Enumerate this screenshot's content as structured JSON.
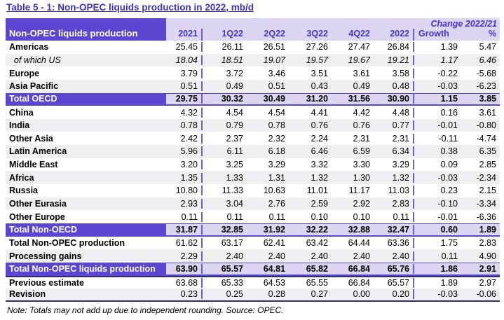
{
  "title": "Table 5 - 1: Non-OPEC liquids production in 2022, mb/d",
  "colors": {
    "accent_purple": "#5a46d0",
    "lavender_band": "#dcd6f2",
    "stripe_gray": "#efeff1",
    "title_blue": "#3a32c6",
    "header_text_purple": "#4336c6",
    "dark_separator": "#2c2c6e"
  },
  "table": {
    "label_header": "Non-OPEC liquids production",
    "change_header": "Change 2022/21",
    "columns": [
      "2021",
      "1Q22",
      "2Q22",
      "3Q22",
      "4Q22",
      "2022",
      "Growth",
      "%"
    ],
    "rows": [
      {
        "label": "Americas",
        "values": [
          "25.45",
          "26.11",
          "26.51",
          "27.26",
          "27.47",
          "26.84",
          "1.39",
          "5.47"
        ]
      },
      {
        "label": "of which US",
        "sub": true,
        "shaded": true,
        "values": [
          "18.04",
          "18.51",
          "19.07",
          "19.57",
          "19.67",
          "19.21",
          "1.17",
          "6.46"
        ]
      },
      {
        "label": "Europe",
        "values": [
          "3.79",
          "3.72",
          "3.46",
          "3.51",
          "3.61",
          "3.58",
          "-0.22",
          "-5.68"
        ]
      },
      {
        "label": "Asia Pacific",
        "shaded": true,
        "values": [
          "0.51",
          "0.49",
          "0.51",
          "0.43",
          "0.49",
          "0.48",
          "-0.03",
          "-6.23"
        ]
      },
      {
        "label": "Total OECD",
        "total": true,
        "values": [
          "29.75",
          "30.32",
          "30.49",
          "31.20",
          "31.56",
          "30.90",
          "1.15",
          "3.85"
        ]
      },
      {
        "label": "China",
        "values": [
          "4.32",
          "4.54",
          "4.54",
          "4.41",
          "4.42",
          "4.48",
          "0.16",
          "3.61"
        ]
      },
      {
        "label": "India",
        "shaded": true,
        "values": [
          "0.78",
          "0.79",
          "0.78",
          "0.76",
          "0.76",
          "0.77",
          "-0.01",
          "-0.80"
        ]
      },
      {
        "label": "Other Asia",
        "values": [
          "2.42",
          "2.37",
          "2.32",
          "2.24",
          "2.31",
          "2.31",
          "-0.11",
          "-4.74"
        ]
      },
      {
        "label": "Latin America",
        "shaded": true,
        "values": [
          "5.96",
          "6.11",
          "6.18",
          "6.46",
          "6.59",
          "6.34",
          "0.38",
          "6.35"
        ]
      },
      {
        "label": "Middle East",
        "values": [
          "3.20",
          "3.25",
          "3.29",
          "3.32",
          "3.30",
          "3.29",
          "0.09",
          "2.85"
        ]
      },
      {
        "label": "Africa",
        "shaded": true,
        "values": [
          "1.35",
          "1.33",
          "1.31",
          "1.32",
          "1.30",
          "1.32",
          "-0.03",
          "-2.34"
        ]
      },
      {
        "label": "Russia",
        "values": [
          "10.80",
          "11.33",
          "10.63",
          "11.01",
          "11.17",
          "11.03",
          "0.23",
          "2.15"
        ]
      },
      {
        "label": "Other Eurasia",
        "shaded": true,
        "values": [
          "2.93",
          "3.04",
          "2.76",
          "2.59",
          "2.92",
          "2.83",
          "-0.10",
          "-3.34"
        ]
      },
      {
        "label": "Other Europe",
        "values": [
          "0.11",
          "0.11",
          "0.11",
          "0.10",
          "0.10",
          "0.11",
          "-0.01",
          "-6.36"
        ]
      },
      {
        "label": "Total Non-OECD",
        "total": true,
        "values": [
          "31.87",
          "32.85",
          "31.92",
          "32.22",
          "32.88",
          "32.47",
          "0.60",
          "1.89"
        ]
      },
      {
        "label": "Total Non-OPEC production",
        "values": [
          "61.62",
          "63.17",
          "62.41",
          "63.42",
          "64.44",
          "63.36",
          "1.75",
          "2.83"
        ]
      },
      {
        "label": "Processing gains",
        "shaded": true,
        "values": [
          "2.29",
          "2.40",
          "2.40",
          "2.40",
          "2.40",
          "2.40",
          "0.11",
          "4.90"
        ]
      },
      {
        "label": "Total Non-OPEC liquids production",
        "total": true,
        "values": [
          "63.90",
          "65.57",
          "64.81",
          "65.82",
          "66.84",
          "65.76",
          "1.86",
          "2.91"
        ]
      },
      {
        "label": "Previous estimate",
        "separator_above": true,
        "values": [
          "63.68",
          "65.33",
          "64.53",
          "65.55",
          "66.84",
          "65.57",
          "1.89",
          "2.97"
        ]
      },
      {
        "label": "Revision",
        "shaded": true,
        "values": [
          "0.23",
          "0.25",
          "0.28",
          "0.27",
          "0.00",
          "0.20",
          "-0.03",
          "-0.06"
        ]
      }
    ],
    "note": "Note: Totals may not add up due to independent rounding. Source: OPEC."
  }
}
